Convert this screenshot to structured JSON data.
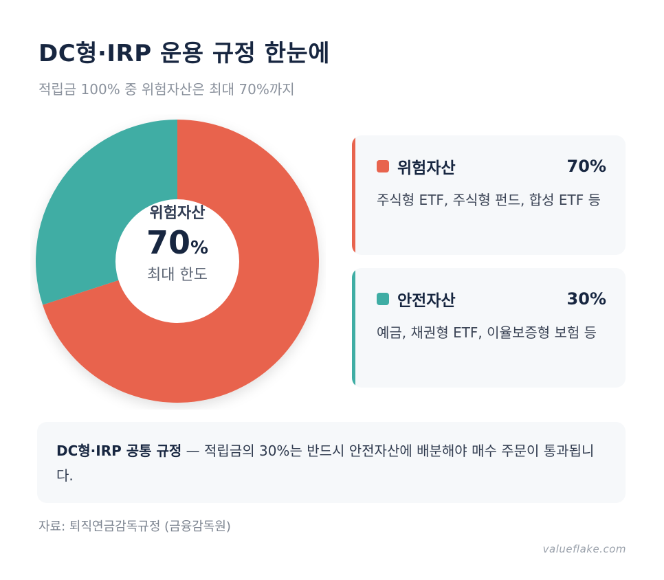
{
  "title": "DC형·IRP 운용 규정 한눈에",
  "subtitle": "적립금 100% 중 위험자산은 최대 70%까지",
  "chart_data": {
    "type": "pie",
    "categories": [
      "위험자산",
      "안전자산"
    ],
    "values": [
      70,
      30
    ],
    "colors": [
      "#e8644e",
      "#3fada4"
    ],
    "center": {
      "label": "위험자산",
      "value": "70",
      "unit": "%",
      "sublabel": "최대 한도"
    }
  },
  "legend": [
    {
      "name": "위험자산",
      "percent": "70%",
      "color": "#e8644e",
      "description": "주식형 ETF, 주식형 펀드, 합성 ETF 등"
    },
    {
      "name": "안전자산",
      "percent": "30%",
      "color": "#3fada4",
      "description": "예금, 채권형 ETF, 이율보증형 보험 등"
    }
  ],
  "note": {
    "strong": "DC형·IRP 공통 규정",
    "text": " — 적립금의 30%는 반드시 안전자산에 배분해야 매수 주문이 통과됩니다."
  },
  "source": "자료: 퇴직연금감독규정 (금융감독원)",
  "watermark": "valueflake.com"
}
